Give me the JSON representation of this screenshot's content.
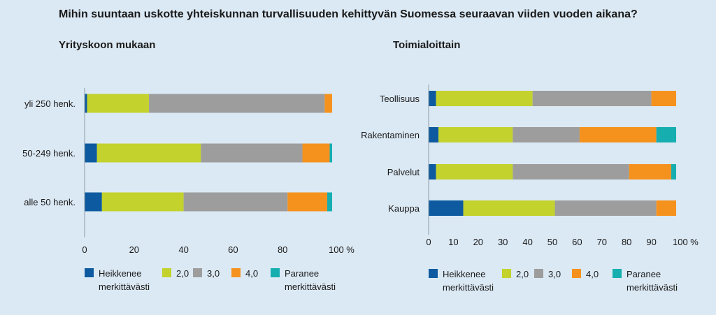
{
  "title": "Mihin suuntaan uskotte yhteiskunnan turvallisuuden kehittyvän Suomessa seuraavan viiden vuoden aikana?",
  "colors": {
    "Heikkenee merkittävästi": "#0e5aa0",
    "2,0": "#c3d22d",
    "3,0": "#9d9d9d",
    "4,0": "#f5921e",
    "Paranee merkittävästi": "#17aeb0"
  },
  "chart_data": [
    {
      "type": "bar",
      "orientation": "horizontal",
      "stacked": true,
      "title": "Yrityskoon mukaan",
      "categories": [
        "yli 250 henk.",
        "50-249 henk.",
        "alle 50 henk."
      ],
      "series": [
        {
          "name": "Heikkenee merkittävästi",
          "values": [
            1,
            5,
            7
          ]
        },
        {
          "name": "2,0",
          "values": [
            25,
            42,
            33
          ]
        },
        {
          "name": "3,0",
          "values": [
            71,
            41,
            42
          ]
        },
        {
          "name": "4,0",
          "values": [
            3,
            11,
            16
          ]
        },
        {
          "name": "Paranee merkittävästi",
          "values": [
            0,
            1,
            2
          ]
        }
      ],
      "xlim": [
        0,
        100
      ],
      "xticks": [
        "0",
        "20",
        "40",
        "60",
        "80",
        "100 %"
      ],
      "grid": false,
      "legend": "bottom"
    },
    {
      "type": "bar",
      "orientation": "horizontal",
      "stacked": true,
      "title": "Toimialoittain",
      "categories": [
        "Teollisuus",
        "Rakentaminen",
        "Palvelut",
        "Kauppa"
      ],
      "series": [
        {
          "name": "Heikkenee merkittävästi",
          "values": [
            3,
            4,
            3,
            14
          ]
        },
        {
          "name": "2,0",
          "values": [
            39,
            30,
            31,
            37
          ]
        },
        {
          "name": "3,0",
          "values": [
            48,
            27,
            47,
            41
          ]
        },
        {
          "name": "4,0",
          "values": [
            10,
            31,
            17,
            8
          ]
        },
        {
          "name": "Paranee merkittävästi",
          "values": [
            0,
            8,
            2,
            0
          ]
        }
      ],
      "xlim": [
        0,
        100
      ],
      "xticks": [
        "0",
        "10",
        "20",
        "30",
        "40",
        "50",
        "60",
        "70",
        "80",
        "90",
        "100 %"
      ],
      "grid": false,
      "legend": "bottom"
    }
  ],
  "legend": [
    {
      "lines": [
        "Heikkenee",
        "merkittävästi"
      ]
    },
    {
      "lines": [
        "2,0"
      ]
    },
    {
      "lines": [
        "3,0"
      ]
    },
    {
      "lines": [
        "4,0"
      ]
    },
    {
      "lines": [
        "Paranee",
        "merkittävästi"
      ]
    }
  ]
}
